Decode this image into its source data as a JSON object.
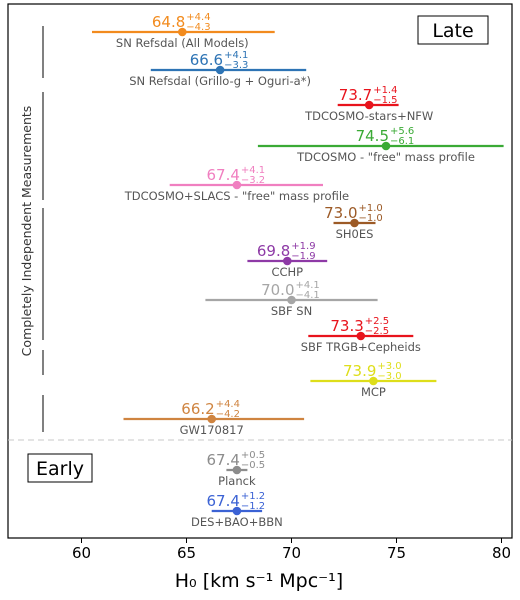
{
  "chart_data": {
    "type": "forest",
    "xlabel": "H₀ [km s⁻¹ Mpc⁻¹]",
    "xlim": [
      56.5,
      80.5
    ],
    "xticks": [
      60,
      65,
      70,
      75,
      80
    ],
    "side_label": "Completely Independent Measurements",
    "group_labels": {
      "late": "Late",
      "early": "Early"
    },
    "measurements": [
      {
        "group": "late",
        "name": "SN Refsdal (All Models)",
        "value": 64.8,
        "plus": 4.4,
        "minus": 4.3,
        "color": "#f28b1e",
        "value_text": "64.8",
        "plus_text": "+4.4",
        "minus_text": "−4.3"
      },
      {
        "group": "late",
        "name": "SN Refsdal (Grillo-g + Oguri-a*)",
        "value": 66.6,
        "plus": 4.1,
        "minus": 3.3,
        "color": "#2e74b5",
        "value_text": "66.6",
        "plus_text": "+4.1",
        "minus_text": "−3.3"
      },
      {
        "group": "late",
        "name": "TDCOSMO-stars+NFW",
        "value": 73.7,
        "plus": 1.4,
        "minus": 1.5,
        "color": "#e8131c",
        "value_text": "73.7",
        "plus_text": "+1.4",
        "minus_text": "−1.5"
      },
      {
        "group": "late",
        "name": "TDCOSMO - \"free\" mass profile",
        "value": 74.5,
        "plus": 5.6,
        "minus": 6.1,
        "color": "#3aaa35",
        "value_text": "74.5",
        "plus_text": "+5.6",
        "minus_text": "−6.1"
      },
      {
        "group": "late",
        "name": "TDCOSMO+SLACS - \"free\" mass profile",
        "value": 67.4,
        "plus": 4.1,
        "minus": 3.2,
        "color": "#f07fc0",
        "value_text": "67.4",
        "plus_text": "+4.1",
        "minus_text": "−3.2"
      },
      {
        "group": "late",
        "name": "SH0ES",
        "value": 73.0,
        "plus": 1.0,
        "minus": 1.0,
        "color": "#9c5a26",
        "value_text": "73.0",
        "plus_text": "+1.0",
        "minus_text": "−1.0"
      },
      {
        "group": "late",
        "name": "CCHP",
        "value": 69.8,
        "plus": 1.9,
        "minus": 1.9,
        "color": "#8e3aa6",
        "value_text": "69.8",
        "plus_text": "+1.9",
        "minus_text": "−1.9"
      },
      {
        "group": "late",
        "name": "SBF SN",
        "value": 70.0,
        "plus": 4.1,
        "minus": 4.1,
        "color": "#a6a6a6",
        "value_text": "70.0",
        "plus_text": "+4.1",
        "minus_text": "−4.1"
      },
      {
        "group": "late",
        "name": "SBF TRGB+Cepheids",
        "value": 73.3,
        "plus": 2.5,
        "minus": 2.5,
        "color": "#e8131c",
        "value_text": "73.3",
        "plus_text": "+2.5",
        "minus_text": "−2.5"
      },
      {
        "group": "late",
        "name": "MCP",
        "value": 73.9,
        "plus": 3.0,
        "minus": 3.0,
        "color": "#dede1a",
        "value_text": "73.9",
        "plus_text": "+3.0",
        "minus_text": "−3.0"
      },
      {
        "group": "late",
        "name": "GW170817",
        "value": 66.2,
        "plus": 4.4,
        "minus": 4.2,
        "color": "#cf8440",
        "value_text": "66.2",
        "plus_text": "+4.4",
        "minus_text": "−4.2"
      },
      {
        "group": "early",
        "name": "Planck",
        "value": 67.4,
        "plus": 0.5,
        "minus": 0.5,
        "color": "#8c8c8c",
        "value_text": "67.4",
        "plus_text": "+0.5",
        "minus_text": "−0.5"
      },
      {
        "group": "early",
        "name": "DES+BAO+BBN",
        "value": 67.4,
        "plus": 1.2,
        "minus": 1.2,
        "color": "#3b62d4",
        "value_text": "67.4",
        "plus_text": "+1.2",
        "minus_text": "−1.2"
      }
    ]
  }
}
